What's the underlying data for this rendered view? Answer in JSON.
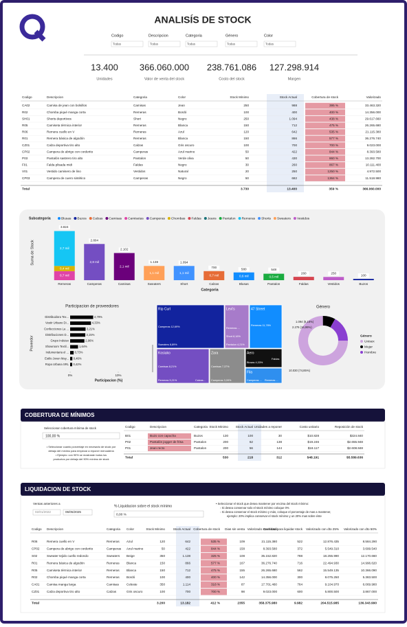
{
  "header": {
    "title": "ANALISÍS DE STOCK",
    "filters": [
      {
        "label": "Codigo",
        "value": "Todas"
      },
      {
        "label": "Descripcion",
        "value": "Todas"
      },
      {
        "label": "Categoria",
        "value": "Todas"
      },
      {
        "label": "Género",
        "value": "Todas"
      },
      {
        "label": "Color",
        "value": "Todas"
      }
    ]
  },
  "kpis": [
    {
      "value": "13.400",
      "label": "Unidades"
    },
    {
      "value": "366.060.000",
      "label": "Valor de venta del stock"
    },
    {
      "value": "238.761.086",
      "label": "Costo del stock"
    },
    {
      "value": "127.298.914",
      "label": "Margen"
    }
  ],
  "stock_table": {
    "columns": [
      "Codigo",
      "Descripcion",
      "Categoria",
      "Color",
      "Stock Minimo",
      "Stock Actual",
      "Cobertura de stock",
      "Valorizado"
    ],
    "rows": [
      [
        "CA02",
        "Camisa de jean con bolsillos",
        "Camisas",
        "Jean",
        "250",
        "988",
        "395 %",
        "33.463.320"
      ],
      [
        "R02",
        "Chomba piqué manga corta",
        "Remeras",
        "Bordó",
        "100",
        "400",
        "400 %",
        "14.356.000"
      ],
      [
        "SH01",
        "Shorts deportivos",
        "Short",
        "Negro",
        "250",
        "1.094",
        "438 %",
        "29.617.660"
      ],
      [
        "R05",
        "Camiseta térmica interior",
        "Remeras",
        "Blanca",
        "150",
        "712",
        "475 %",
        "26.265.680"
      ],
      [
        "R06",
        "Remera cuello en V",
        "Remeras",
        "Azul",
        "120",
        "642",
        "535 %",
        "21.115.380"
      ],
      [
        "R01",
        "Remera básica de algodón",
        "Remeras",
        "Blanca",
        "150",
        "866",
        "577 %",
        "36.276.740"
      ],
      [
        "CZ01",
        "Calza deportiva tiro alto",
        "Calzas",
        "Gris oscuro",
        "100",
        "700",
        "700 %",
        "9.023.000"
      ],
      [
        "CP02",
        "Campera de abrigo con corderito",
        "Camperas",
        "Azul marino",
        "50",
        "422",
        "844 %",
        "8.393.580"
      ],
      [
        "P03",
        "Pantalón sastrero tiro alto",
        "Pantalon",
        "Verde oliva",
        "50",
        "430",
        "860 %",
        "13.282.700"
      ],
      [
        "F01",
        "Falda plisada midi",
        "Faldas",
        "Negro",
        "30",
        "260",
        "867 %",
        "10.111.400"
      ],
      [
        "V01",
        "Vestido camisero de lino",
        "Vestidos",
        "Natural",
        "20",
        "250",
        "1250 %",
        "4.972.500"
      ],
      [
        "CP03",
        "Campera de cuero sintético",
        "Camperas",
        "Negro",
        "50",
        "682",
        "1364 %",
        "11.518.980"
      ]
    ],
    "total": [
      "Total",
      null,
      null,
      null,
      "3.730",
      "13.400",
      "359 %",
      "366.060.000"
    ]
  },
  "stock_chart": {
    "legend": {
      "title": "Subcategoria",
      "items": [
        {
          "name": "Blusas",
          "color": "#118DFF"
        },
        {
          "name": "Buzos",
          "color": "#12239E"
        },
        {
          "name": "Calzas",
          "color": "#E66C37"
        },
        {
          "name": "Camisas",
          "color": "#6B007B"
        },
        {
          "name": "Camisetas",
          "color": "#E044A7"
        },
        {
          "name": "Camperas",
          "color": "#744EC2"
        },
        {
          "name": "Chombas",
          "color": "#D9B300"
        },
        {
          "name": "Faldas",
          "color": "#D64550"
        },
        {
          "name": "Jeans",
          "color": "#197278"
        },
        {
          "name": "Pantalon",
          "color": "#1AAB40"
        },
        {
          "name": "Remeras",
          "color": "#15C6F4"
        },
        {
          "name": "Shorts",
          "color": "#4092FF"
        },
        {
          "name": "Sweaters",
          "color": "#FFA058"
        },
        {
          "name": "Vestidos",
          "color": "#BE5DC9"
        }
      ]
    },
    "y_label": "Suma de Stock",
    "x_label": "Categoria",
    "categories": [
      "Remeras",
      "Camperas",
      "Camisas",
      "Sweaters",
      "Short",
      "Calzas",
      "Blusas",
      "Pantalon",
      "Faldas",
      "Vestidos",
      "Buzos"
    ],
    "totals": [
      3824,
      2804,
      2102,
      1138,
      1094,
      700,
      580,
      548,
      260,
      250,
      100
    ],
    "total_labels": [
      "3.824",
      "2.804",
      "2.102",
      "1.138",
      "1.094",
      "700",
      "580",
      "548",
      "260",
      "250",
      "100"
    ],
    "segments": [
      [
        {
          "name": "Camisetas",
          "value": 700,
          "label": "0,7 mil"
        },
        {
          "name": "Chombas",
          "value": 400,
          "label": "0,4 mil"
        },
        {
          "name": "Remeras",
          "value": 2700,
          "label": "2,7 mil"
        }
      ],
      [
        {
          "name": "Camperas",
          "value": 2800,
          "label": "2,8 mil"
        }
      ],
      [
        {
          "name": "Camisas",
          "value": 2100,
          "label": "2,1 mil"
        }
      ],
      [
        {
          "name": "Sweaters",
          "value": 1100,
          "label": "1,1 mil"
        }
      ],
      [
        {
          "name": "Shorts",
          "value": 1100,
          "label": "1,1 mil"
        }
      ],
      [
        {
          "name": "Calzas",
          "value": 700,
          "label": "0,7 mil"
        }
      ],
      [
        {
          "name": "Blusas",
          "value": 600,
          "label": "0,6 mil"
        }
      ],
      [
        {
          "name": "Pantalon",
          "value": 500,
          "label": "0,5 mil"
        }
      ],
      [
        {
          "name": "Faldas",
          "value": 260
        }
      ],
      [
        {
          "name": "Vestidos",
          "value": 250
        }
      ],
      [
        {
          "name": "Buzos",
          "value": 100
        }
      ]
    ]
  },
  "providers": {
    "title": "Participacion de proveedores",
    "y_label": "Proveedor",
    "x_label": "Participacion (%)",
    "color": "#000000",
    "categories": [
      "Distribuidora Tex...",
      "Vestir Urbano Di...",
      "Confecciones La ...",
      "Distribuciones D...",
      "Grupo Indutex",
      "Showroom Textil...",
      "Indumentaria el ...",
      "Estilo Joven May...",
      "Ropa Urbana SRL"
    ],
    "values": [
      4.79,
      4.33,
      3.21,
      3.15,
      2.96,
      1.64,
      0.73,
      0.46,
      0.42
    ],
    "value_labels": [
      "4,79%",
      "4,33%",
      "3,21%",
      "3,15%",
      "2,96%",
      "1,64%",
      "0,73%",
      "0,46%",
      "0,42%"
    ],
    "xlim": [
      0,
      10
    ],
    "xticks": [
      {
        "value": 0,
        "label": "0%"
      },
      {
        "value": 10,
        "label": "10%"
      }
    ]
  },
  "treemap": [
    {
      "brand": "Rip Curl",
      "color": "#12239E",
      "cells": [
        "Camperas 12,69%",
        "Sweaters 8,89%"
      ]
    },
    {
      "brand": "Levi's",
      "color": "#A77BCA",
      "cells": [
        "Short 8,16%",
        "Remeras ...",
        "Pantalon 4,21%"
      ]
    },
    {
      "brand": "47 Street",
      "color": "#118DFF",
      "cells": [
        "Remeras 11,76%"
      ]
    },
    {
      "brand": "Kosiuko",
      "color": "#744EC2",
      "cells": [
        "Camisas 8,21%",
        "Remeras 5,21%",
        "Calzas..."
      ]
    },
    {
      "brand": "Zara",
      "color": "#8C8C8C",
      "cells": [
        "Camisas 7,37%",
        "Camperas 3,09%"
      ]
    },
    {
      "brand": "Aero",
      "color": "#111111",
      "cells": [
        "Blusas 4,33%",
        "Faldas"
      ]
    },
    {
      "brand": "Fila",
      "color": "#2F8FEF",
      "cells": [
        "Camperas ...",
        "Remeras ..."
      ]
    }
  ],
  "gender": {
    "title": "Género",
    "legend_title": "Género",
    "series": [
      {
        "name": "Unisex",
        "color": "#CDA4DE",
        "value": 10030,
        "label": "10.030 (74,85%)"
      },
      {
        "name": "Mujer",
        "color": "#000000",
        "value": 1094,
        "label": "1.094 (8,16%)"
      },
      {
        "name": "Hombre",
        "color": "#8A3FD1",
        "value": 2276,
        "label": "2.276 (16,99%)"
      }
    ]
  },
  "coverage": {
    "title": "COBERTURA DE MÍNIMOS",
    "slicer_label": "Seleccionar cobertura mínima de stock",
    "slicer_value": "100,00 %",
    "notes": [
      "• Seleccionar cuanto porcentaje en necesario de stock por",
      "debajo del mínimo para empezar a reponer mercadería",
      "• Ejemplo: con 90% se mostrarán todos los",
      "productos por debajo del 90% mínimo de stock"
    ],
    "table": {
      "columns": [
        "Codigo",
        "Descripcion",
        "Categoria",
        "Stock Minimo",
        "Stock Actual",
        "Unidades a reponer",
        "Costo unitario",
        "Reposición de stock"
      ],
      "rows": [
        [
          "B01",
          "Buzo con capucha",
          "Buzos",
          "130",
          "100",
          "30",
          "$10.828",
          "$324.840"
        ],
        [
          "P02",
          "Pantalón jogger de frisa",
          "Pantalon",
          "200",
          "62",
          "138",
          "$19.246",
          "$2.655.948"
        ],
        [
          "P01",
          "Jean recto",
          "Pantalon",
          "200",
          "56",
          "144",
          "$18.117",
          "$2.608.848"
        ]
      ],
      "total": [
        "Total",
        null,
        null,
        "530",
        "218",
        "312",
        "$48.191",
        "$5.589.636"
      ]
    }
  },
  "liquidation": {
    "title": "LIQUIDACION DE STOCK",
    "date_label": "Ventas anteriores a",
    "date_from": "02/01/2022",
    "date_to": "06/05/2025",
    "slicer_label": "% Liquidacion sobre el stock mínimo",
    "slicer_value": "0,00 %",
    "notes": [
      "• Seleccionar el stock que desea mantener por encima del stock mínimo:",
      "◦ Si desea conservar solo el stock mínimo coloque 0%",
      "◦ Si desea conservar el stock mínimo y más, coloque el porcentaje de mas a mantener,",
      "ejemplo: 20% implica conservar el stock mínimo y un 20% mas sobre éste"
    ],
    "table": {
      "columns": [
        "Codigo",
        "Descripcion",
        "Categoria",
        "Color",
        "Stock Minimo",
        "Stock Actual",
        "Cobertura de stock",
        "Dias sin venta",
        "Valorizado stock total",
        "Cantidad para liquidar stock",
        "Valorizado con dto 25%",
        "Valorizado con dto 50%"
      ],
      "rows": [
        [
          "R06",
          "Remera cuello en V",
          "Remeras",
          "Azul",
          "120",
          "642",
          "535 %",
          "109",
          "21.115.380",
          "522",
          "12.876.435",
          "8.584.290"
        ],
        [
          "CP02",
          "Campera de abrigo con corderito",
          "Camperas",
          "Azul marino",
          "50",
          "422",
          "844 %",
          "158",
          "8.393.580",
          "372",
          "5.549.310",
          "3.699.540"
        ],
        [
          "S02",
          "Sweater tejido cuello redondo",
          "Sweaters",
          "Beige",
          "350",
          "1.138",
          "325 %",
          "108",
          "35.152.820",
          "788",
          "18.255.990",
          "12.170.660"
        ],
        [
          "R01",
          "Remera básica de algodón",
          "Remeras",
          "Blanca",
          "150",
          "866",
          "577 %",
          "167",
          "36.276.740",
          "716",
          "22.494.930",
          "14.996.620"
        ],
        [
          "R05",
          "Camiseta térmica interior",
          "Remeras",
          "Blanca",
          "150",
          "712",
          "475 %",
          "155",
          "26.265.680",
          "562",
          "15.549.135",
          "10.366.090"
        ],
        [
          "R02",
          "Chomba piqué manga corta",
          "Remeras",
          "Bordó",
          "100",
          "400",
          "400 %",
          "142",
          "14.356.000",
          "300",
          "8.075.250",
          "5.383.500"
        ],
        [
          "CA01",
          "Camisa manga larga",
          "Camisas",
          "Celeste",
          "350",
          "1.114",
          "318 %",
          "87",
          "17.701.460",
          "764",
          "9.104.970",
          "6.069.980"
        ],
        [
          "CZ01",
          "Calza deportiva tiro alto",
          "Calzas",
          "Gris oscuro",
          "100",
          "700",
          "700 %",
          "98",
          "9.023.000",
          "600",
          "5.800.500",
          "3.867.000"
        ]
      ],
      "total": [
        "Total",
        null,
        null,
        null,
        "3.200",
        "13.182",
        "412 %",
        "2355",
        "358.375.980",
        "9.982",
        "204.515.985",
        "136.343.990"
      ]
    }
  }
}
